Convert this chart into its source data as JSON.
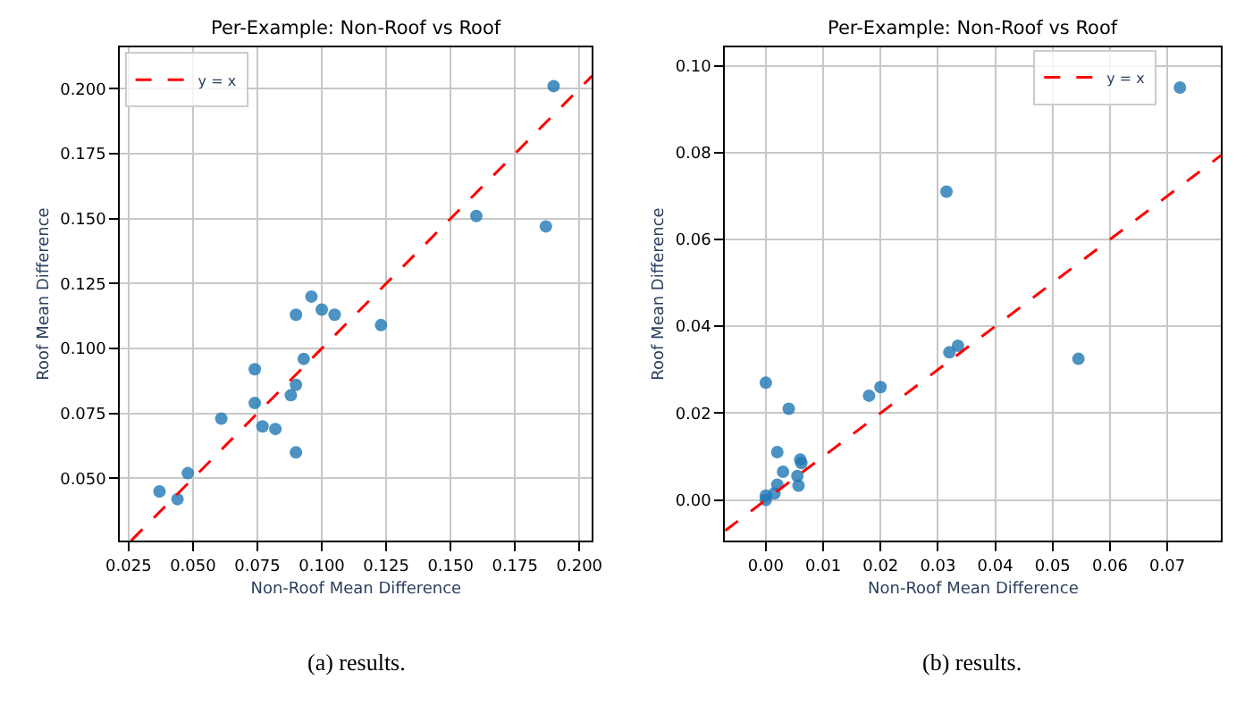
{
  "chart_data": [
    {
      "type": "scatter",
      "title": "Per-Example: Non-Roof vs Roof",
      "xlabel": "Non-Roof Mean Difference",
      "ylabel": "Roof Mean Difference",
      "annotations": [
        "(a) results."
      ],
      "grid": true,
      "legend": "top left",
      "marker": "circle",
      "xlim": [
        0.0217,
        0.2049
      ],
      "ylim": [
        0.026,
        0.216
      ],
      "xticks": [
        {
          "value": 0.025,
          "label": "0.025"
        },
        {
          "value": 0.05,
          "label": "0.050"
        },
        {
          "value": 0.075,
          "label": "0.075"
        },
        {
          "value": 0.1,
          "label": "0.100"
        },
        {
          "value": 0.125,
          "label": "0.125"
        },
        {
          "value": 0.15,
          "label": "0.150"
        },
        {
          "value": 0.175,
          "label": "0.175"
        },
        {
          "value": 0.2,
          "label": "0.200"
        }
      ],
      "yticks": [
        {
          "value": 0.05,
          "label": "0.050"
        },
        {
          "value": 0.075,
          "label": "0.075"
        },
        {
          "value": 0.1,
          "label": "0.100"
        },
        {
          "value": 0.125,
          "label": "0.125"
        },
        {
          "value": 0.15,
          "label": "0.150"
        },
        {
          "value": 0.175,
          "label": "0.175"
        },
        {
          "value": 0.2,
          "label": "0.200"
        }
      ],
      "series": [
        {
          "color": "#1f77b4",
          "x": [
            0.037,
            0.044,
            0.048,
            0.061,
            0.074,
            0.074,
            0.077,
            0.082,
            0.088,
            0.09,
            0.09,
            0.09,
            0.093,
            0.096,
            0.1,
            0.105,
            0.123,
            0.16,
            0.187,
            0.19
          ],
          "values": [
            0.045,
            0.042,
            0.052,
            0.073,
            0.092,
            0.079,
            0.07,
            0.069,
            0.082,
            0.113,
            0.086,
            0.06,
            0.096,
            0.12,
            0.115,
            0.113,
            0.109,
            0.151,
            0.147,
            0.201
          ]
        },
        {
          "type": "line",
          "name": "y = x",
          "color": "#ff0000",
          "line_style": "dashed",
          "marker": "none",
          "x": [
            0.026,
            0.2049
          ],
          "values": [
            0.026,
            0.2049
          ]
        }
      ]
    },
    {
      "type": "scatter",
      "title": "Per-Example: Non-Roof vs Roof",
      "xlabel": "Non-Roof Mean Difference",
      "ylabel": "Roof Mean Difference",
      "annotations": [
        "(b) results."
      ],
      "grid": true,
      "legend": "top right",
      "marker": "circle",
      "xlim": [
        -0.0071,
        0.0794
      ],
      "ylim": [
        -0.0094,
        0.1043
      ],
      "xticks": [
        {
          "value": 0,
          "label": "0.00"
        },
        {
          "value": 0.01,
          "label": "0.01"
        },
        {
          "value": 0.02,
          "label": "0.02"
        },
        {
          "value": 0.03,
          "label": "0.03"
        },
        {
          "value": 0.04,
          "label": "0.04"
        },
        {
          "value": 0.05,
          "label": "0.05"
        },
        {
          "value": 0.06,
          "label": "0.06"
        },
        {
          "value": 0.07,
          "label": "0.07"
        }
      ],
      "yticks": [
        {
          "value": 0,
          "label": "0.00"
        },
        {
          "value": 0.02,
          "label": "0.02"
        },
        {
          "value": 0.04,
          "label": "0.04"
        },
        {
          "value": 0.06,
          "label": "0.06"
        },
        {
          "value": 0.08,
          "label": "0.08"
        },
        {
          "value": 0.1,
          "label": "0.10"
        }
      ],
      "series": [
        {
          "color": "#1f77b4",
          "x": [
            0.0,
            0.0,
            0.0015,
            0.002,
            0.002,
            0.003,
            0.0,
            0.004,
            0.0055,
            0.0057,
            0.006,
            0.0062,
            0.018,
            0.02,
            0.0315,
            0.032,
            0.0335,
            0.0545,
            0.0722
          ],
          "values": [
            0.0,
            0.001,
            0.0015,
            0.0035,
            0.011,
            0.0065,
            0.027,
            0.021,
            0.0055,
            0.0033,
            0.0093,
            0.0085,
            0.024,
            0.026,
            0.071,
            0.034,
            0.0355,
            0.0325,
            0.095
          ]
        },
        {
          "type": "line",
          "name": "y = x",
          "color": "#ff0000",
          "line_style": "dashed",
          "marker": "none",
          "x": [
            -0.0071,
            0.0794
          ],
          "values": [
            -0.0071,
            0.0794
          ]
        }
      ]
    }
  ]
}
